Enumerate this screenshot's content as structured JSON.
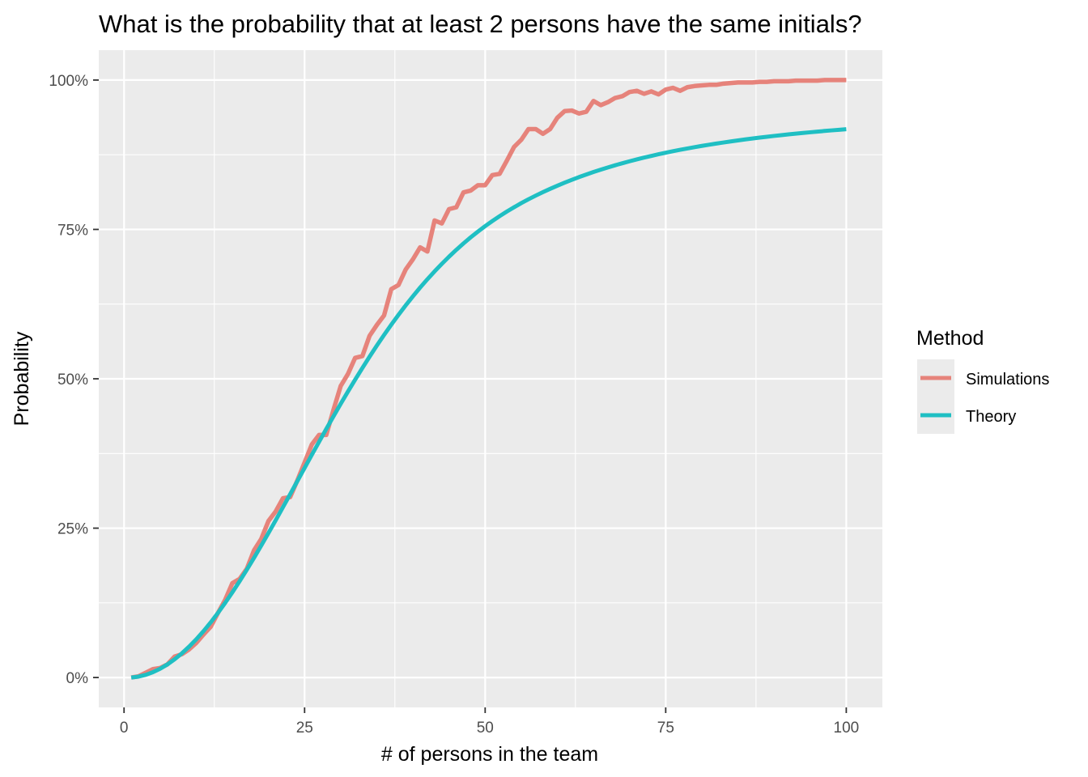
{
  "chart_data": {
    "type": "line",
    "title": "What is the probability that at least 2 persons have the same initials?",
    "xlabel": "# of persons in the team",
    "ylabel": "Probability",
    "xlim": [
      -3.5,
      105
    ],
    "ylim": [
      -0.05,
      1.05
    ],
    "x_ticks": [
      0,
      25,
      50,
      75,
      100
    ],
    "x_tick_labels": [
      "0",
      "25",
      "50",
      "75",
      "100"
    ],
    "y_ticks": [
      0,
      0.25,
      0.5,
      0.75,
      1.0
    ],
    "y_tick_labels": [
      "0%",
      "25%",
      "50%",
      "75%",
      "100%"
    ],
    "grid": true,
    "panel_background": "#ebebeb",
    "legend": {
      "title": "Method",
      "position": "right",
      "entries": [
        "Simulations",
        "Theory"
      ]
    },
    "series": [
      {
        "name": "Simulations",
        "color": "#e6837b",
        "x": [
          1,
          2,
          3,
          4,
          5,
          6,
          7,
          8,
          9,
          10,
          11,
          12,
          13,
          14,
          15,
          16,
          17,
          18,
          19,
          20,
          21,
          22,
          23,
          24,
          25,
          26,
          27,
          28,
          29,
          30,
          31,
          32,
          33,
          34,
          35,
          36,
          37,
          38,
          39,
          40,
          41,
          42,
          43,
          44,
          45,
          46,
          47,
          48,
          49,
          50,
          51,
          52,
          53,
          54,
          55,
          56,
          57,
          58,
          59,
          60,
          61,
          62,
          63,
          64,
          65,
          66,
          67,
          68,
          69,
          70,
          71,
          72,
          73,
          74,
          75,
          76,
          77,
          78,
          79,
          80,
          81,
          82,
          83,
          84,
          85,
          86,
          87,
          88,
          89,
          90,
          91,
          92,
          93,
          94,
          95,
          96,
          97,
          98,
          99,
          100
        ],
        "y": [
          0.0,
          0.002,
          0.008,
          0.014,
          0.016,
          0.022,
          0.035,
          0.039,
          0.047,
          0.058,
          0.072,
          0.085,
          0.108,
          0.13,
          0.158,
          0.165,
          0.182,
          0.213,
          0.232,
          0.262,
          0.278,
          0.3,
          0.302,
          0.33,
          0.36,
          0.39,
          0.406,
          0.406,
          0.448,
          0.488,
          0.508,
          0.535,
          0.538,
          0.572,
          0.59,
          0.606,
          0.65,
          0.657,
          0.683,
          0.7,
          0.72,
          0.713,
          0.765,
          0.76,
          0.784,
          0.787,
          0.812,
          0.815,
          0.824,
          0.824,
          0.841,
          0.843,
          0.865,
          0.888,
          0.9,
          0.918,
          0.918,
          0.91,
          0.918,
          0.937,
          0.948,
          0.949,
          0.944,
          0.947,
          0.965,
          0.958,
          0.963,
          0.97,
          0.973,
          0.98,
          0.982,
          0.977,
          0.981,
          0.976,
          0.984,
          0.987,
          0.982,
          0.988,
          0.99,
          0.991,
          0.992,
          0.992,
          0.994,
          0.995,
          0.996,
          0.996,
          0.996,
          0.997,
          0.997,
          0.998,
          0.998,
          0.998,
          0.999,
          0.999,
          0.999,
          0.999,
          1.0,
          1.0,
          1.0,
          1.0
        ]
      },
      {
        "name": "Theory",
        "color": "#1fbfc3",
        "x": [
          1,
          2,
          3,
          4,
          5,
          6,
          7,
          8,
          9,
          10,
          11,
          12,
          13,
          14,
          15,
          16,
          17,
          18,
          19,
          20,
          21,
          22,
          23,
          24,
          25,
          26,
          27,
          28,
          29,
          30,
          31,
          32,
          33,
          34,
          35,
          36,
          37,
          38,
          39,
          40,
          41,
          42,
          43,
          44,
          45,
          46,
          47,
          48,
          49,
          50,
          51,
          52,
          53,
          54,
          55,
          56,
          57,
          58,
          59,
          60,
          61,
          62,
          63,
          64,
          65,
          66,
          67,
          68,
          69,
          70,
          71,
          72,
          73,
          74,
          75,
          76,
          77,
          78,
          79,
          80,
          81,
          82,
          83,
          84,
          85,
          86,
          87,
          88,
          89,
          90,
          91,
          92,
          93,
          94,
          95,
          96,
          97,
          98,
          99,
          100
        ],
        "y": [
          0.0,
          0.0015,
          0.0044,
          0.0089,
          0.0147,
          0.0219,
          0.0305,
          0.0404,
          0.0516,
          0.064,
          0.0776,
          0.0923,
          0.1081,
          0.1249,
          0.1426,
          0.1611,
          0.1804,
          0.2004,
          0.2209,
          0.2419,
          0.2633,
          0.285,
          0.3068,
          0.3288,
          0.3508,
          0.3727,
          0.3944,
          0.416,
          0.4372,
          0.4581,
          0.4786,
          0.4986,
          0.5181,
          0.5371,
          0.5555,
          0.5733,
          0.5905,
          0.607,
          0.6229,
          0.6381,
          0.6527,
          0.6666,
          0.6798,
          0.6924,
          0.7044,
          0.7158,
          0.7266,
          0.7368,
          0.7464,
          0.7555,
          0.7641,
          0.7722,
          0.7799,
          0.7871,
          0.794,
          0.8005,
          0.8066,
          0.8124,
          0.8179,
          0.8232,
          0.8282,
          0.833,
          0.8376,
          0.8419,
          0.8461,
          0.85,
          0.8538,
          0.8574,
          0.8608,
          0.8641,
          0.8672,
          0.8702,
          0.873,
          0.8758,
          0.8784,
          0.8809,
          0.8833,
          0.8855,
          0.8877,
          0.8898,
          0.8918,
          0.8937,
          0.8955,
          0.8973,
          0.899,
          0.9006,
          0.9022,
          0.9037,
          0.9051,
          0.9065,
          0.9078,
          0.9091,
          0.9103,
          0.9115,
          0.9126,
          0.9137,
          0.9148,
          0.9158,
          0.9168,
          0.9177
        ]
      }
    ]
  }
}
